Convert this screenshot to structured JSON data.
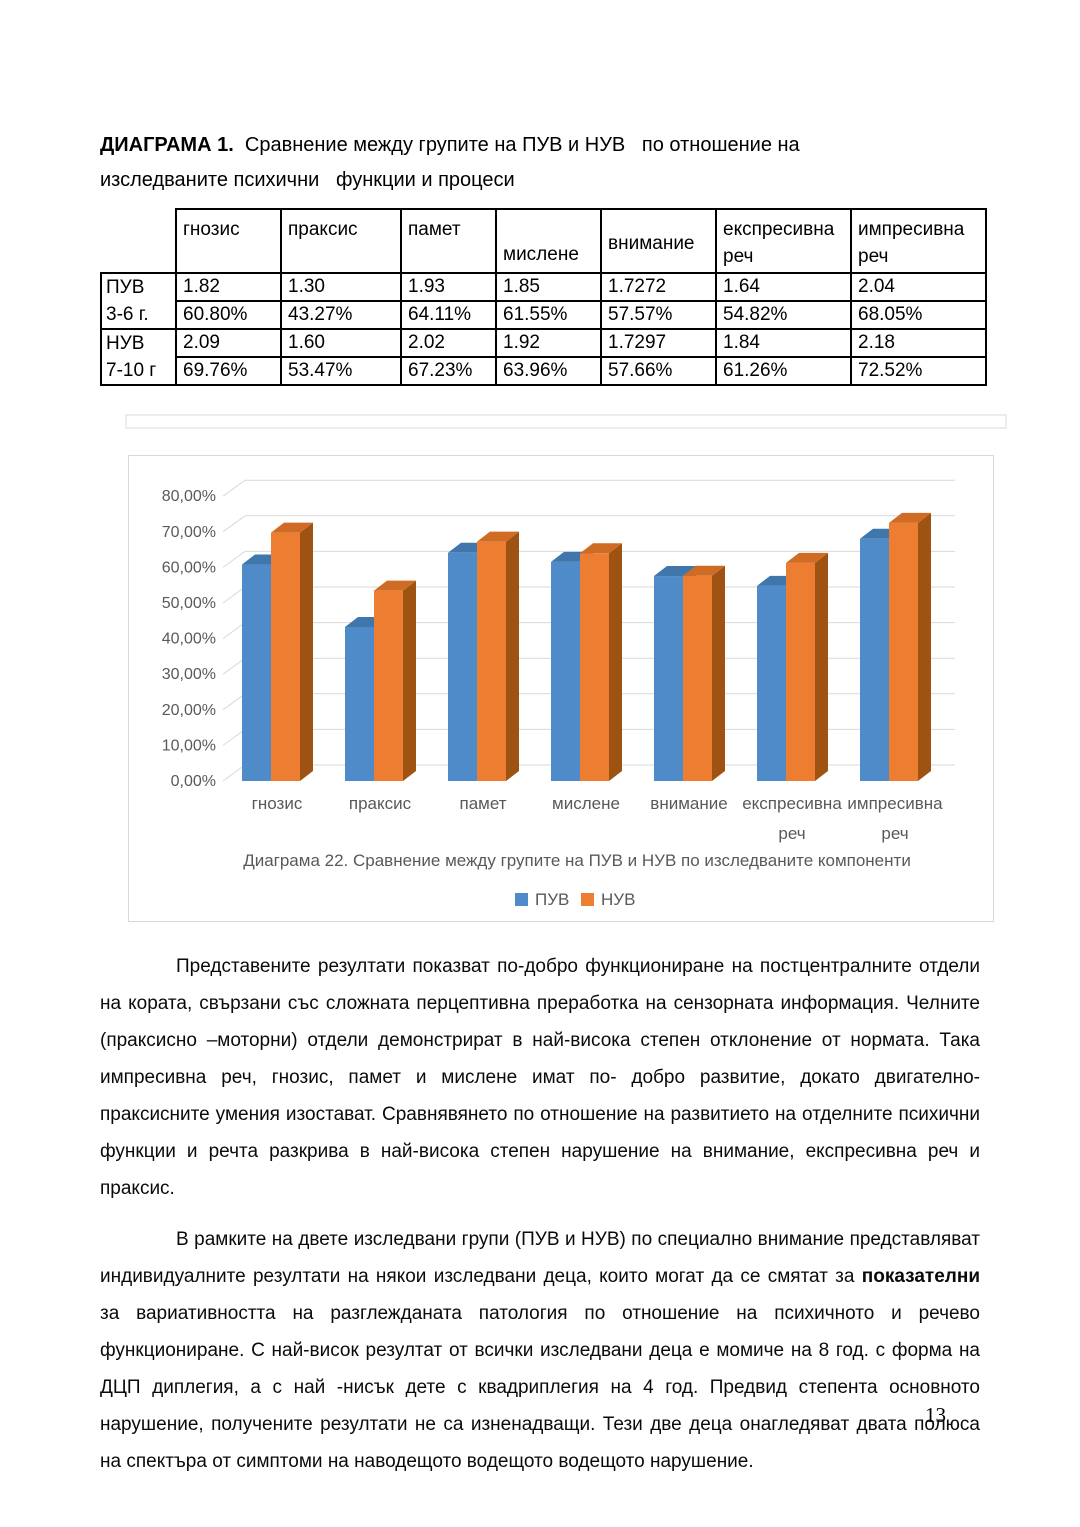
{
  "title": {
    "line1_bold": "ДИАГРАМА 1.",
    "line1_rest": "  Сравнение между групите на ПУВ и НУВ   по отношение на",
    "line2": "изследваните психични   функции и процеси"
  },
  "table": {
    "headers": [
      "гнозис",
      "праксис",
      "памет",
      "мислене",
      "внимание",
      "експресивна реч",
      "импресивна реч"
    ],
    "rows": [
      {
        "label": "ПУВ",
        "cells": [
          "1.82",
          "1.30",
          "1.93",
          "1.85",
          "1.7272",
          "1.64",
          "2.04"
        ]
      },
      {
        "label": "3-6 г.",
        "cells": [
          "60.80%",
          "43.27%",
          "64.11%",
          "61.55%",
          "57.57%",
          "54.82%",
          "68.05%"
        ]
      },
      {
        "label": "НУВ",
        "cells": [
          "2.09",
          "1.60",
          "2.02",
          "1.92",
          "1.7297",
          "1.84",
          "2.18"
        ]
      },
      {
        "label": "7-10 г",
        "cells": [
          "69.76%",
          "53.47%",
          "67.23%",
          "63.96%",
          "57.66%",
          "61.26%",
          "72.52%"
        ]
      }
    ]
  },
  "chart_data": {
    "type": "bar",
    "categories": [
      "гнозис",
      "праксис",
      "памет",
      "мислене",
      "внимание",
      "експресивна реч",
      "импресивна реч"
    ],
    "category_lines": [
      [
        "гнозис"
      ],
      [
        "праксис"
      ],
      [
        "памет"
      ],
      [
        "мислене"
      ],
      [
        "внимание"
      ],
      [
        "експресивна",
        "реч"
      ],
      [
        "импресивна",
        "реч"
      ]
    ],
    "series": [
      {
        "name": "ПУВ",
        "values": [
          60.8,
          43.27,
          64.11,
          61.55,
          57.57,
          54.82,
          68.05
        ],
        "color": "#4E8BC8",
        "color_top": "#3F76AC",
        "color_side": "#2F5E92"
      },
      {
        "name": "НУВ",
        "values": [
          69.76,
          53.47,
          67.23,
          63.96,
          57.66,
          61.26,
          72.52
        ],
        "color": "#ED7D31",
        "color_top": "#CF6B24",
        "color_side": "#9E5312"
      }
    ],
    "title": "",
    "caption": "Диаграма 22.  Сравнение между групите на ПУВ и НУВ   по  изследваните компоненти",
    "xlabel": "",
    "ylabel": "",
    "ylim": [
      0,
      80
    ],
    "ytick_step": 10,
    "yticks": [
      "0,00%",
      "10,00%",
      "20,00%",
      "30,00%",
      "40,00%",
      "50,00%",
      "60,00%",
      "70,00%",
      "80,00%"
    ],
    "grid": true,
    "grid_color": "#d9d9d9",
    "text_color": "#595959",
    "legend_position": "bottom"
  },
  "paragraphs": {
    "p1": "Представените резултати показват по-добро функциониране на постцентралните отдели на кората, свързани със сложната перцептивна преработка на сензорната информация. Челните (праксисно –моторни) отдели  демонстрират в най-висока степен отклонение от нормата. Така импресивна реч, гнозис, памет и мислене  имат по- добро развитие, докато двигателно-праксисните умения изостават. Сравнявянето по отношение на развитието на отделните  психични функции и речта разкрива  в най-висока степен нарушение на внимание, експресивна реч и праксис.",
    "p2_before": "В рамките на двете изследвани групи (ПУВ и НУВ) по специално внимание представляват индивидуалните резултати на някои изследвани деца, които могат да се смятат за ",
    "p2_bold": "показателни",
    "p2_after": " за вариативността на разглежданата патология по отношение на психичното и речево функциониране.  С най-висок резултат от всички изследвани деца е момиче на 8 год. с форма на ДЦП диплегия, а с най -нисък  дете с квадриплегия на 4 год. Предвид степента основното нарушение, получените резултати не са изненадващи. Тези две  деца онагледяват двата полюса на спектъра от симптоми на наводещото  водещото водещото нарушение."
  },
  "page": {
    "number": "13"
  }
}
